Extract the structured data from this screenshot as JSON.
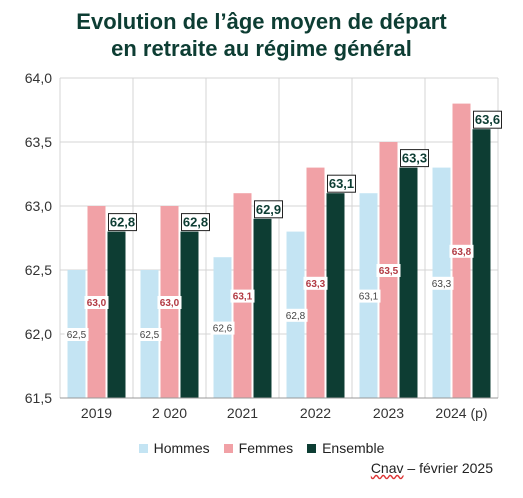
{
  "title_lines": [
    "Evolution de l’âge moyen de départ",
    "en retraite au régime général"
  ],
  "source": {
    "brand": "Cnav",
    "rest": " – février 2025"
  },
  "colors": {
    "title": "#0d3d33",
    "hommes": "#c4e4f3",
    "femmes": "#f1a1a6",
    "ensemble": "#0d3d33"
  },
  "chart_data": {
    "type": "bar",
    "categories": [
      "2019",
      "2 020",
      "2021",
      "2022",
      "2023",
      "2024 (p)"
    ],
    "series": [
      {
        "name": "Hommes",
        "values": [
          62.5,
          62.5,
          62.6,
          62.8,
          63.1,
          63.3
        ],
        "labels": [
          "62,5",
          "62,5",
          "62,6",
          "62,8",
          "63,1",
          "63,3"
        ]
      },
      {
        "name": "Femmes",
        "values": [
          63.0,
          63.0,
          63.1,
          63.3,
          63.5,
          63.8
        ],
        "labels": [
          "63,0",
          "63,0",
          "63,1",
          "63,3",
          "63,5",
          "63,8"
        ]
      },
      {
        "name": "Ensemble",
        "values": [
          62.8,
          62.8,
          62.9,
          63.1,
          63.3,
          63.6
        ],
        "labels": [
          "62,8",
          "62,8",
          "62,9",
          "63,1",
          "63,3",
          "63,6"
        ]
      }
    ],
    "ylim": [
      61.5,
      64.0
    ],
    "yticks": [
      61.5,
      62.0,
      62.5,
      63.0,
      63.5,
      64.0
    ],
    "ytick_labels": [
      "61,5",
      "62,0",
      "62,5",
      "63,0",
      "63,5",
      "64,0"
    ],
    "grid": true,
    "legend_position": "bottom"
  }
}
